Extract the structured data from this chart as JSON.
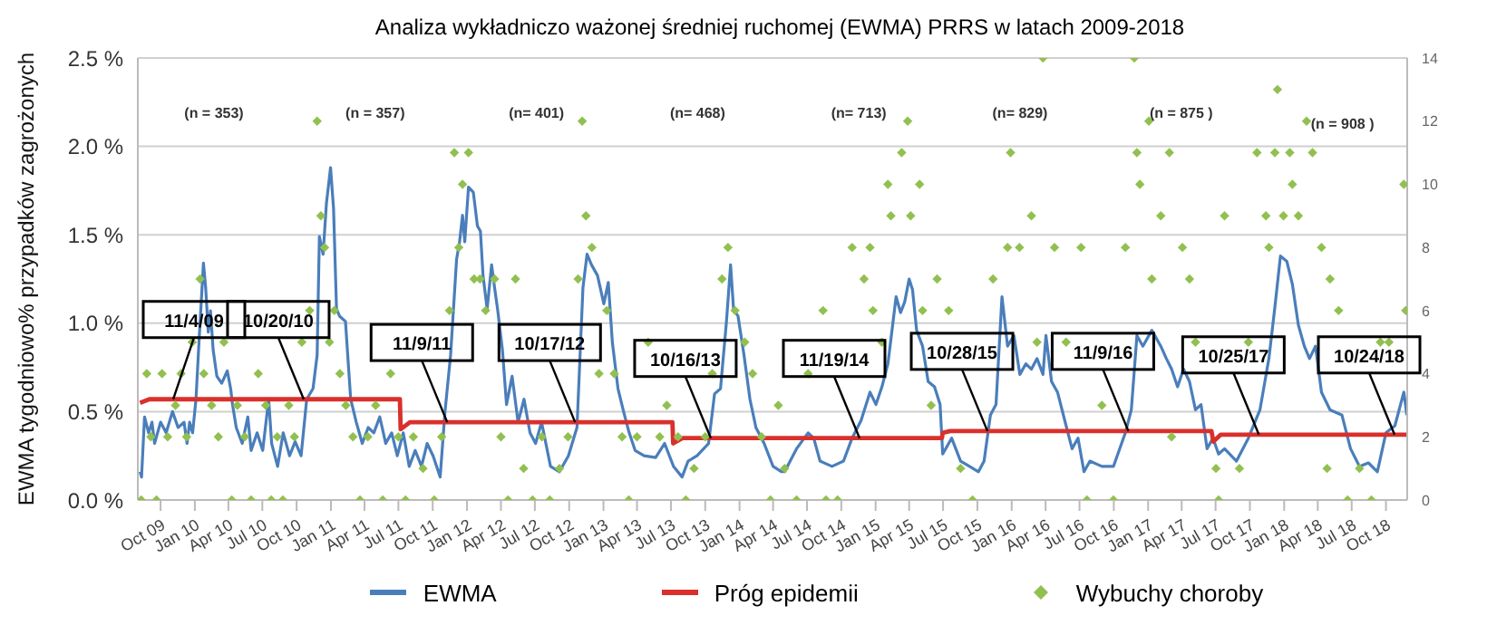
{
  "chart_data": {
    "type": "line",
    "title": "Analiza wykładniczo ważonej średniej ruchomej (EWMA) PRRS w latach 2009-2018",
    "ylabel": "EWMA tygodniowo% przypadków zagrożonych",
    "xlim": [
      "2009-08-01",
      "2018-11-27"
    ],
    "xticks": [
      {
        "value": "2009-10-01",
        "label": "Oct 09"
      },
      {
        "value": "2010-01-01",
        "label": "Jan 10"
      },
      {
        "value": "2010-04-01",
        "label": "Apr 10"
      },
      {
        "value": "2010-07-01",
        "label": "Jul 10"
      },
      {
        "value": "2010-10-01",
        "label": "Oct 10"
      },
      {
        "value": "2011-01-01",
        "label": "Jan 11"
      },
      {
        "value": "2011-04-01",
        "label": "Apr 11"
      },
      {
        "value": "2011-07-01",
        "label": "Jul 11"
      },
      {
        "value": "2011-10-01",
        "label": "Oct 11"
      },
      {
        "value": "2012-01-01",
        "label": "Jan 12"
      },
      {
        "value": "2012-04-01",
        "label": "Apr 12"
      },
      {
        "value": "2012-07-01",
        "label": "Jul 12"
      },
      {
        "value": "2012-10-01",
        "label": "Oct 12"
      },
      {
        "value": "2013-01-01",
        "label": "Jan 13"
      },
      {
        "value": "2013-04-01",
        "label": "Apr 13"
      },
      {
        "value": "2013-07-01",
        "label": "Jul 13"
      },
      {
        "value": "2013-10-01",
        "label": "Oct 13"
      },
      {
        "value": "2014-01-01",
        "label": "Jan 14"
      },
      {
        "value": "2014-04-01",
        "label": "Apr 14"
      },
      {
        "value": "2014-07-01",
        "label": "Jul 14"
      },
      {
        "value": "2014-10-01",
        "label": "Oct 14"
      },
      {
        "value": "2015-01-01",
        "label": "Jan 15"
      },
      {
        "value": "2015-04-01",
        "label": "Apr 15"
      },
      {
        "value": "2015-07-01",
        "label": "Jul 15"
      },
      {
        "value": "2015-10-01",
        "label": "Oct 15"
      },
      {
        "value": "2016-01-01",
        "label": "Jan 16"
      },
      {
        "value": "2016-04-01",
        "label": "Apr 16"
      },
      {
        "value": "2016-07-01",
        "label": "Jul 16"
      },
      {
        "value": "2016-10-01",
        "label": "Oct 16"
      },
      {
        "value": "2017-01-01",
        "label": "Jan 17"
      },
      {
        "value": "2017-04-01",
        "label": "Apr 17"
      },
      {
        "value": "2017-07-01",
        "label": "Jul 17"
      },
      {
        "value": "2017-10-01",
        "label": "Oct 17"
      },
      {
        "value": "2018-01-01",
        "label": "Jan 18"
      },
      {
        "value": "2018-04-01",
        "label": "Apr 18"
      },
      {
        "value": "2018-07-01",
        "label": "Jul 18"
      },
      {
        "value": "2018-10-01",
        "label": "Oct 18"
      }
    ],
    "ylim": [
      0,
      2.5
    ],
    "yticks": [
      {
        "value": 0,
        "label": "0.0 %"
      },
      {
        "value": 0.5,
        "label": "0.5 %"
      },
      {
        "value": 1,
        "label": "1.0 %"
      },
      {
        "value": 1.5,
        "label": "1.5 %"
      },
      {
        "value": 2,
        "label": "2.0 %"
      },
      {
        "value": 2.5,
        "label": "2.5 %"
      }
    ],
    "y2lim": [
      0,
      14
    ],
    "y2ticks": [
      0,
      2,
      4,
      6,
      8,
      10,
      12,
      14
    ],
    "grid": "y",
    "legend": "bottom",
    "series": [
      {
        "name": "EWMA",
        "type": "line",
        "color": "#4a7ebb",
        "marker": "none",
        "x": [
          "2009-08-07",
          "2009-08-11",
          "2009-08-19",
          "2009-08-30",
          "2009-09-08",
          "2009-09-15",
          "2009-10-01",
          "2009-10-16",
          "2009-11-02",
          "2009-11-17",
          "2009-12-03",
          "2009-12-11",
          "2009-12-18",
          "2009-12-26",
          "2010-01-04",
          "2010-01-12",
          "2010-01-24",
          "2010-01-30",
          "2010-02-06",
          "2010-02-12",
          "2010-02-19",
          "2010-03-01",
          "2010-03-14",
          "2010-03-29",
          "2010-04-07",
          "2010-04-12",
          "2010-04-22",
          "2010-05-08",
          "2010-05-23",
          "2010-06-01",
          "2010-06-17",
          "2010-07-02",
          "2010-07-18",
          "2010-07-26",
          "2010-08-11",
          "2010-08-26",
          "2010-09-12",
          "2010-09-27",
          "2010-10-13",
          "2010-10-28",
          "2010-11-14",
          "2010-11-25",
          "2010-12-01",
          "2010-12-11",
          "2010-12-20",
          "2010-12-31",
          "2011-01-08",
          "2011-01-16",
          "2011-01-24",
          "2011-02-09",
          "2011-02-16",
          "2011-02-23",
          "2011-03-10",
          "2011-03-26",
          "2011-04-11",
          "2011-04-26",
          "2011-05-12",
          "2011-05-28",
          "2011-06-13",
          "2011-06-28",
          "2011-07-14",
          "2011-07-30",
          "2011-08-15",
          "2011-09-01",
          "2011-09-16",
          "2011-10-02",
          "2011-10-21",
          "2011-11-03",
          "2011-11-18",
          "2011-12-04",
          "2011-12-12",
          "2011-12-20",
          "2011-12-26",
          "2012-01-05",
          "2012-01-18",
          "2012-01-29",
          "2012-02-06",
          "2012-02-13",
          "2012-02-24",
          "2012-03-07",
          "2012-03-15",
          "2012-03-23",
          "2012-04-05",
          "2012-04-16",
          "2012-05-01",
          "2012-05-17",
          "2012-06-02",
          "2012-06-18",
          "2012-07-03",
          "2012-07-19",
          "2012-08-12",
          "2012-09-05",
          "2012-09-29",
          "2012-10-22",
          "2012-11-07",
          "2012-11-18",
          "2012-11-30",
          "2012-12-16",
          "2013-01-02",
          "2013-01-14",
          "2013-01-25",
          "2013-02-09",
          "2013-02-24",
          "2013-03-11",
          "2013-03-27",
          "2013-04-20",
          "2013-05-21",
          "2013-06-14",
          "2013-07-08",
          "2013-07-31",
          "2013-08-16",
          "2013-09-09",
          "2013-10-10",
          "2013-10-26",
          "2013-11-11",
          "2013-11-27",
          "2013-12-08",
          "2013-12-16",
          "2013-12-28",
          "2014-01-13",
          "2014-01-29",
          "2014-02-14",
          "2014-03-08",
          "2014-04-01",
          "2014-04-24",
          "2014-05-02",
          "2014-06-03",
          "2014-07-04",
          "2014-07-19",
          "2014-08-05",
          "2014-09-06",
          "2014-10-07",
          "2014-10-30",
          "2014-11-23",
          "2014-12-17",
          "2015-01-02",
          "2015-01-18",
          "2015-02-03",
          "2015-02-25",
          "2015-03-09",
          "2015-03-20",
          "2015-04-01",
          "2015-04-10",
          "2015-04-21",
          "2015-05-07",
          "2015-05-22",
          "2015-06-08",
          "2015-06-23",
          "2015-06-30",
          "2015-07-24",
          "2015-08-17",
          "2015-09-10",
          "2015-10-04",
          "2015-10-19",
          "2015-11-05",
          "2015-11-20",
          "2015-12-06",
          "2015-12-21",
          "2016-01-07",
          "2016-01-23",
          "2016-02-08",
          "2016-02-23",
          "2016-03-09",
          "2016-03-25",
          "2016-04-02",
          "2016-04-17",
          "2016-05-03",
          "2016-05-26",
          "2016-06-11",
          "2016-06-27",
          "2016-07-13",
          "2016-07-29",
          "2016-08-30",
          "2016-09-30",
          "2016-11-01",
          "2016-11-17",
          "2016-12-02",
          "2016-12-18",
          "2017-01-11",
          "2017-02-04",
          "2017-02-19",
          "2017-03-05",
          "2017-03-21",
          "2017-04-06",
          "2017-04-22",
          "2017-05-08",
          "2017-05-23",
          "2017-06-08",
          "2017-06-24",
          "2017-07-09",
          "2017-07-25",
          "2017-08-26",
          "2017-09-27",
          "2017-10-28",
          "2017-11-21",
          "2017-12-07",
          "2017-12-22",
          "2018-01-08",
          "2018-01-23",
          "2018-02-08",
          "2018-02-24",
          "2018-03-10",
          "2018-03-26",
          "2018-04-11",
          "2018-05-04",
          "2018-06-05",
          "2018-06-28",
          "2018-07-22",
          "2018-08-15",
          "2018-09-08",
          "2018-10-01",
          "2018-10-25",
          "2018-11-18",
          "2018-11-26"
        ],
        "values": [
          0.16,
          0.13,
          0.47,
          0.38,
          0.44,
          0.32,
          0.44,
          0.38,
          0.5,
          0.41,
          0.44,
          0.32,
          0.44,
          0.38,
          0.57,
          0.89,
          1.34,
          1.2,
          0.95,
          1.07,
          0.85,
          0.7,
          0.66,
          0.73,
          0.63,
          0.54,
          0.41,
          0.32,
          0.47,
          0.28,
          0.38,
          0.28,
          0.57,
          0.32,
          0.19,
          0.38,
          0.25,
          0.33,
          0.25,
          0.57,
          0.63,
          0.82,
          1.49,
          1.39,
          1.68,
          1.88,
          1.65,
          1.08,
          1.04,
          1.01,
          0.79,
          0.57,
          0.44,
          0.32,
          0.41,
          0.38,
          0.47,
          0.32,
          0.38,
          0.25,
          0.38,
          0.19,
          0.28,
          0.19,
          0.32,
          0.25,
          0.13,
          0.5,
          0.82,
          1.36,
          1.46,
          1.61,
          1.46,
          1.77,
          1.74,
          1.55,
          1.52,
          1.27,
          1.08,
          1.33,
          1.2,
          1.08,
          0.85,
          0.54,
          0.7,
          0.44,
          0.57,
          0.38,
          0.32,
          0.44,
          0.19,
          0.16,
          0.25,
          0.41,
          1.2,
          1.39,
          1.33,
          1.27,
          1.11,
          1.23,
          0.89,
          0.63,
          0.5,
          0.38,
          0.28,
          0.25,
          0.24,
          0.32,
          0.19,
          0.13,
          0.22,
          0.25,
          0.32,
          0.6,
          0.63,
          1.01,
          1.33,
          1.08,
          1.04,
          0.82,
          0.57,
          0.41,
          0.32,
          0.19,
          0.16,
          0.16,
          0.29,
          0.38,
          0.35,
          0.22,
          0.19,
          0.22,
          0.35,
          0.45,
          0.61,
          0.54,
          0.64,
          0.77,
          1.15,
          1.06,
          1.12,
          1.25,
          1.19,
          0.96,
          0.87,
          0.67,
          0.64,
          0.54,
          0.26,
          0.35,
          0.22,
          0.19,
          0.16,
          0.22,
          0.48,
          0.54,
          1.15,
          0.87,
          0.93,
          0.71,
          0.77,
          0.74,
          0.8,
          0.71,
          0.93,
          0.67,
          0.61,
          0.42,
          0.29,
          0.35,
          0.16,
          0.22,
          0.19,
          0.19,
          0.38,
          0.51,
          0.93,
          0.87,
          0.96,
          0.87,
          0.8,
          0.74,
          0.64,
          0.74,
          0.67,
          0.51,
          0.54,
          0.29,
          0.35,
          0.26,
          0.29,
          0.22,
          0.35,
          0.51,
          0.8,
          1.09,
          1.38,
          1.35,
          1.22,
          0.99,
          0.87,
          0.8,
          0.87,
          0.61,
          0.51,
          0.48,
          0.29,
          0.19,
          0.21,
          0.16,
          0.38,
          0.42,
          0.61,
          0.48
        ]
      },
      {
        "name": "Próg epidemii",
        "type": "line",
        "color": "#d9302c",
        "marker": "none",
        "x": [
          "2009-08-07",
          "2009-09-01",
          "2011-07-05",
          "2011-07-07",
          "2011-08-01",
          "2013-07-05",
          "2013-07-07",
          "2013-08-01",
          "2015-06-28",
          "2015-06-30",
          "2015-07-20",
          "2017-06-20",
          "2017-06-25",
          "2017-07-15",
          "2018-11-26"
        ],
        "values": [
          0.55,
          0.57,
          0.57,
          0.4,
          0.44,
          0.44,
          0.32,
          0.35,
          0.35,
          0.38,
          0.39,
          0.39,
          0.33,
          0.37,
          0.37
        ]
      },
      {
        "name": "Wybuchy choroby",
        "type": "scatter",
        "axis": "y2",
        "color": "#92c050",
        "marker": "diamond",
        "x": [
          "2009-08-10",
          "2009-08-25",
          "2009-09-05",
          "2009-09-20",
          "2009-10-05",
          "2009-10-20",
          "2009-11-10",
          "2009-11-25",
          "2009-12-10",
          "2009-12-25",
          "2010-01-15",
          "2010-01-25",
          "2010-02-15",
          "2010-03-05",
          "2010-03-20",
          "2010-04-10",
          "2010-04-25",
          "2010-05-15",
          "2010-06-01",
          "2010-06-20",
          "2010-07-10",
          "2010-07-25",
          "2010-08-10",
          "2010-08-25",
          "2010-09-10",
          "2010-09-25",
          "2010-10-15",
          "2010-11-05",
          "2010-11-25",
          "2010-12-05",
          "2010-12-15",
          "2010-12-28",
          "2011-01-10",
          "2011-01-25",
          "2011-02-10",
          "2011-03-01",
          "2011-03-20",
          "2011-04-10",
          "2011-05-01",
          "2011-05-20",
          "2011-06-10",
          "2011-07-01",
          "2011-07-20",
          "2011-08-10",
          "2011-09-05",
          "2011-10-05",
          "2011-10-25",
          "2011-11-15",
          "2011-11-28",
          "2011-12-10",
          "2011-12-20",
          "2012-01-05",
          "2012-01-20",
          "2012-02-05",
          "2012-02-20",
          "2012-03-15",
          "2012-04-01",
          "2012-04-20",
          "2012-05-10",
          "2012-06-01",
          "2012-06-25",
          "2012-07-20",
          "2012-08-10",
          "2012-09-05",
          "2012-09-28",
          "2012-10-25",
          "2012-11-05",
          "2012-11-15",
          "2012-12-01",
          "2012-12-20",
          "2013-01-10",
          "2013-01-30",
          "2013-02-20",
          "2013-03-10",
          "2013-04-01",
          "2013-05-01",
          "2013-06-01",
          "2013-06-20",
          "2013-07-20",
          "2013-08-10",
          "2013-09-01",
          "2013-10-01",
          "2013-10-20",
          "2013-11-15",
          "2013-12-01",
          "2013-12-20",
          "2014-01-15",
          "2014-02-05",
          "2014-03-01",
          "2014-03-25",
          "2014-04-15",
          "2014-05-02",
          "2014-06-03",
          "2014-07-04",
          "2014-08-13",
          "2014-08-21",
          "2014-09-21",
          "2014-10-30",
          "2014-12-01",
          "2014-12-17",
          "2014-12-25",
          "2015-01-18",
          "2015-02-03",
          "2015-02-11",
          "2015-03-12",
          "2015-03-28",
          "2015-04-05",
          "2015-04-29",
          "2015-05-07",
          "2015-05-30",
          "2015-06-15",
          "2015-07-16",
          "2015-08-17",
          "2015-09-18",
          "2015-11-12",
          "2015-12-21",
          "2015-12-29",
          "2016-01-22",
          "2016-02-23",
          "2016-03-09",
          "2016-03-25",
          "2016-04-25",
          "2016-05-26",
          "2016-07-05",
          "2016-07-21",
          "2016-08-30",
          "2016-09-30",
          "2016-11-01",
          "2016-11-25",
          "2016-12-02",
          "2016-12-10",
          "2017-01-03",
          "2017-01-11",
          "2017-02-04",
          "2017-02-27",
          "2017-03-05",
          "2017-04-03",
          "2017-04-22",
          "2017-05-08",
          "2017-07-02",
          "2017-07-09",
          "2017-07-25",
          "2017-09-03",
          "2017-09-27",
          "2017-10-20",
          "2017-11-13",
          "2017-11-21",
          "2017-12-07",
          "2017-12-14",
          "2017-12-30",
          "2018-01-16",
          "2018-01-23",
          "2018-02-08",
          "2018-03-02",
          "2018-03-18",
          "2018-04-11",
          "2018-04-26",
          "2018-05-04",
          "2018-05-27",
          "2018-06-20",
          "2018-07-22",
          "2018-08-23",
          "2018-09-16",
          "2018-10-09",
          "2018-11-18",
          "2018-11-23"
        ],
        "values": [
          0,
          4,
          2,
          0,
          4,
          2,
          3,
          4,
          2,
          5,
          7,
          4,
          3,
          2,
          5,
          0,
          3,
          2,
          0,
          4,
          3,
          0,
          2,
          0,
          3,
          2,
          5,
          6,
          12,
          9,
          8,
          5,
          6,
          4,
          3,
          2,
          0,
          2,
          3,
          0,
          4,
          2,
          0,
          2,
          1,
          0,
          2,
          6,
          11,
          8,
          10,
          11,
          7,
          7,
          6,
          7,
          2,
          0,
          7,
          1,
          0,
          2,
          0,
          1,
          2,
          7,
          12,
          9,
          8,
          4,
          6,
          4,
          2,
          0,
          2,
          5,
          2,
          3,
          2,
          0,
          1,
          2,
          4,
          7,
          8,
          6,
          5,
          4,
          2,
          0,
          3,
          1,
          0,
          4,
          6,
          0,
          0,
          8,
          7,
          8,
          6,
          5,
          10,
          9,
          11,
          12,
          9,
          10,
          6,
          3,
          7,
          6,
          1,
          0,
          7,
          8,
          11,
          8,
          9,
          5,
          14,
          8,
          5,
          8,
          0,
          3,
          0,
          8,
          14,
          11,
          10,
          12,
          7,
          9,
          11,
          2,
          8,
          7,
          5,
          1,
          0,
          9,
          1,
          5,
          11,
          9,
          8,
          11,
          13,
          9,
          11,
          10,
          9,
          12,
          11,
          8,
          1,
          7,
          6,
          0,
          1,
          0,
          5,
          5,
          10,
          6
        ]
      }
    ],
    "annotations": [
      "(n = 353)",
      "(n = 357)",
      "(n= 401)",
      "(n= 468)",
      "(n= 713)",
      "(n= 829)",
      "(n = 875 )",
      "(n = 908 )",
      {
        "text": "11/4/09",
        "x": "2009-11-04",
        "y": 0.57
      },
      {
        "text": "10/20/10",
        "x": "2010-10-20",
        "y": 0.57
      },
      {
        "text": "11/9/11",
        "x": "2011-11-09",
        "y": 0.44
      },
      {
        "text": "10/17/12",
        "x": "2012-10-17",
        "y": 0.44
      },
      {
        "text": "10/16/13",
        "x": "2013-10-16",
        "y": 0.35
      },
      {
        "text": "11/19/14",
        "x": "2014-11-19",
        "y": 0.35
      },
      {
        "text": "10/28/15",
        "x": "2015-10-28",
        "y": 0.39
      },
      {
        "text": "11/9/16",
        "x": "2016-11-09",
        "y": 0.39
      },
      {
        "text": "10/25/17",
        "x": "2017-10-25",
        "y": 0.37
      },
      {
        "text": "10/24/18",
        "x": "2018-10-24",
        "y": 0.37
      }
    ]
  }
}
